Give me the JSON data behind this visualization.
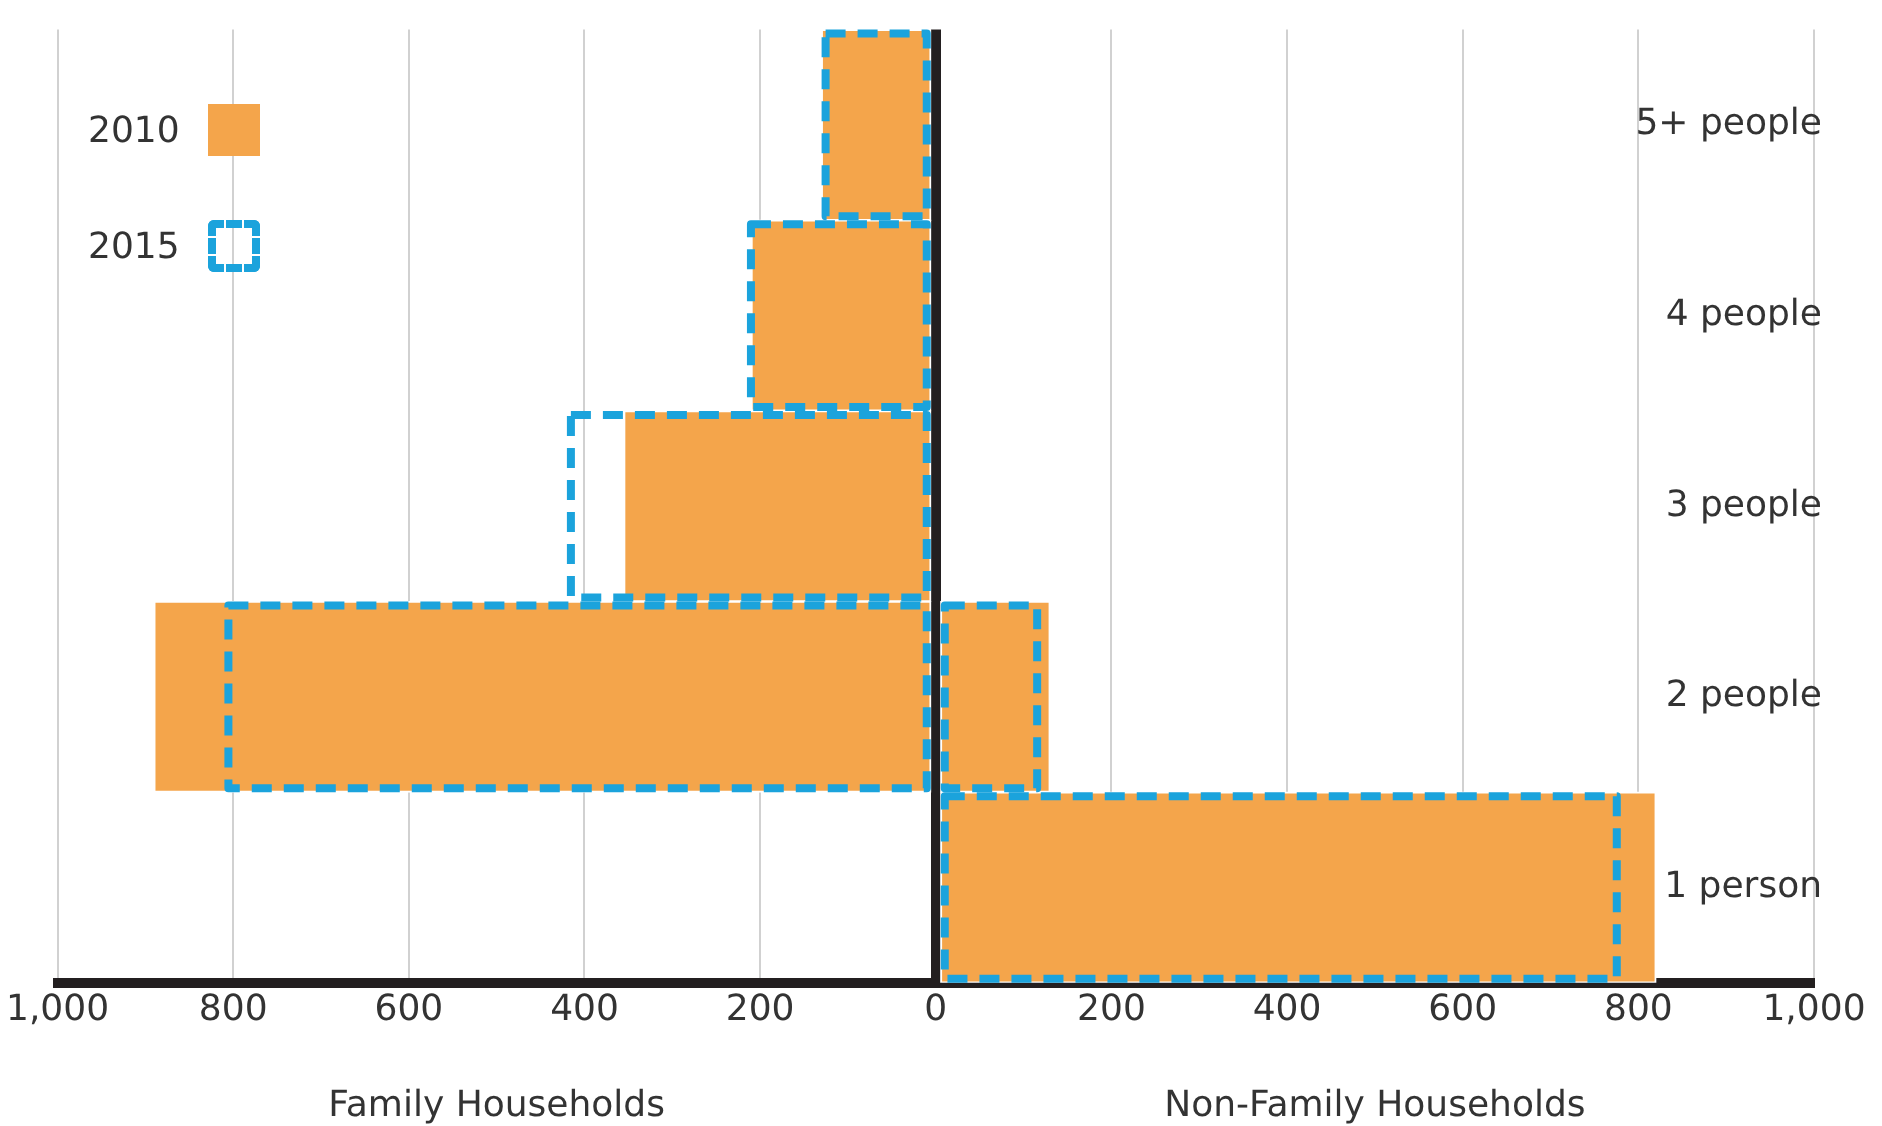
{
  "chart_data": {
    "type": "bar",
    "orientation": "horizontal",
    "categories": [
      "5+ people",
      "4 people",
      "3 people",
      "2 people",
      "1 person"
    ],
    "series": [
      {
        "name": "2010",
        "color": "#f4a54b",
        "values": [
          -130,
          -210,
          -355,
          -890,
          null
        ]
      },
      {
        "color": "#f4a54b",
        "values": [
          null,
          null,
          null,
          130,
          820
        ]
      },
      {
        "name": "2015",
        "color": "#1ba3dc",
        "line_style": "dashed",
        "values": [
          -130,
          -215,
          -420,
          -810,
          null
        ]
      },
      {
        "color": "#1ba3dc",
        "line_style": "dashed",
        "values": [
          null,
          null,
          null,
          120,
          780
        ]
      }
    ],
    "xlim": [
      -1000,
      1000
    ],
    "xticks": [
      {
        "value": -1000,
        "label": "1,000"
      },
      {
        "value": -800,
        "label": "800"
      },
      {
        "value": -600,
        "label": "600"
      },
      {
        "value": -400,
        "label": "400"
      },
      {
        "value": -200,
        "label": "200"
      },
      0,
      200,
      400,
      600,
      800,
      {
        "value": 1000,
        "label": "1,000"
      }
    ],
    "annotations": [
      "Family Households",
      "Non-Family Households"
    ],
    "grid": "x",
    "legend": "top left"
  }
}
